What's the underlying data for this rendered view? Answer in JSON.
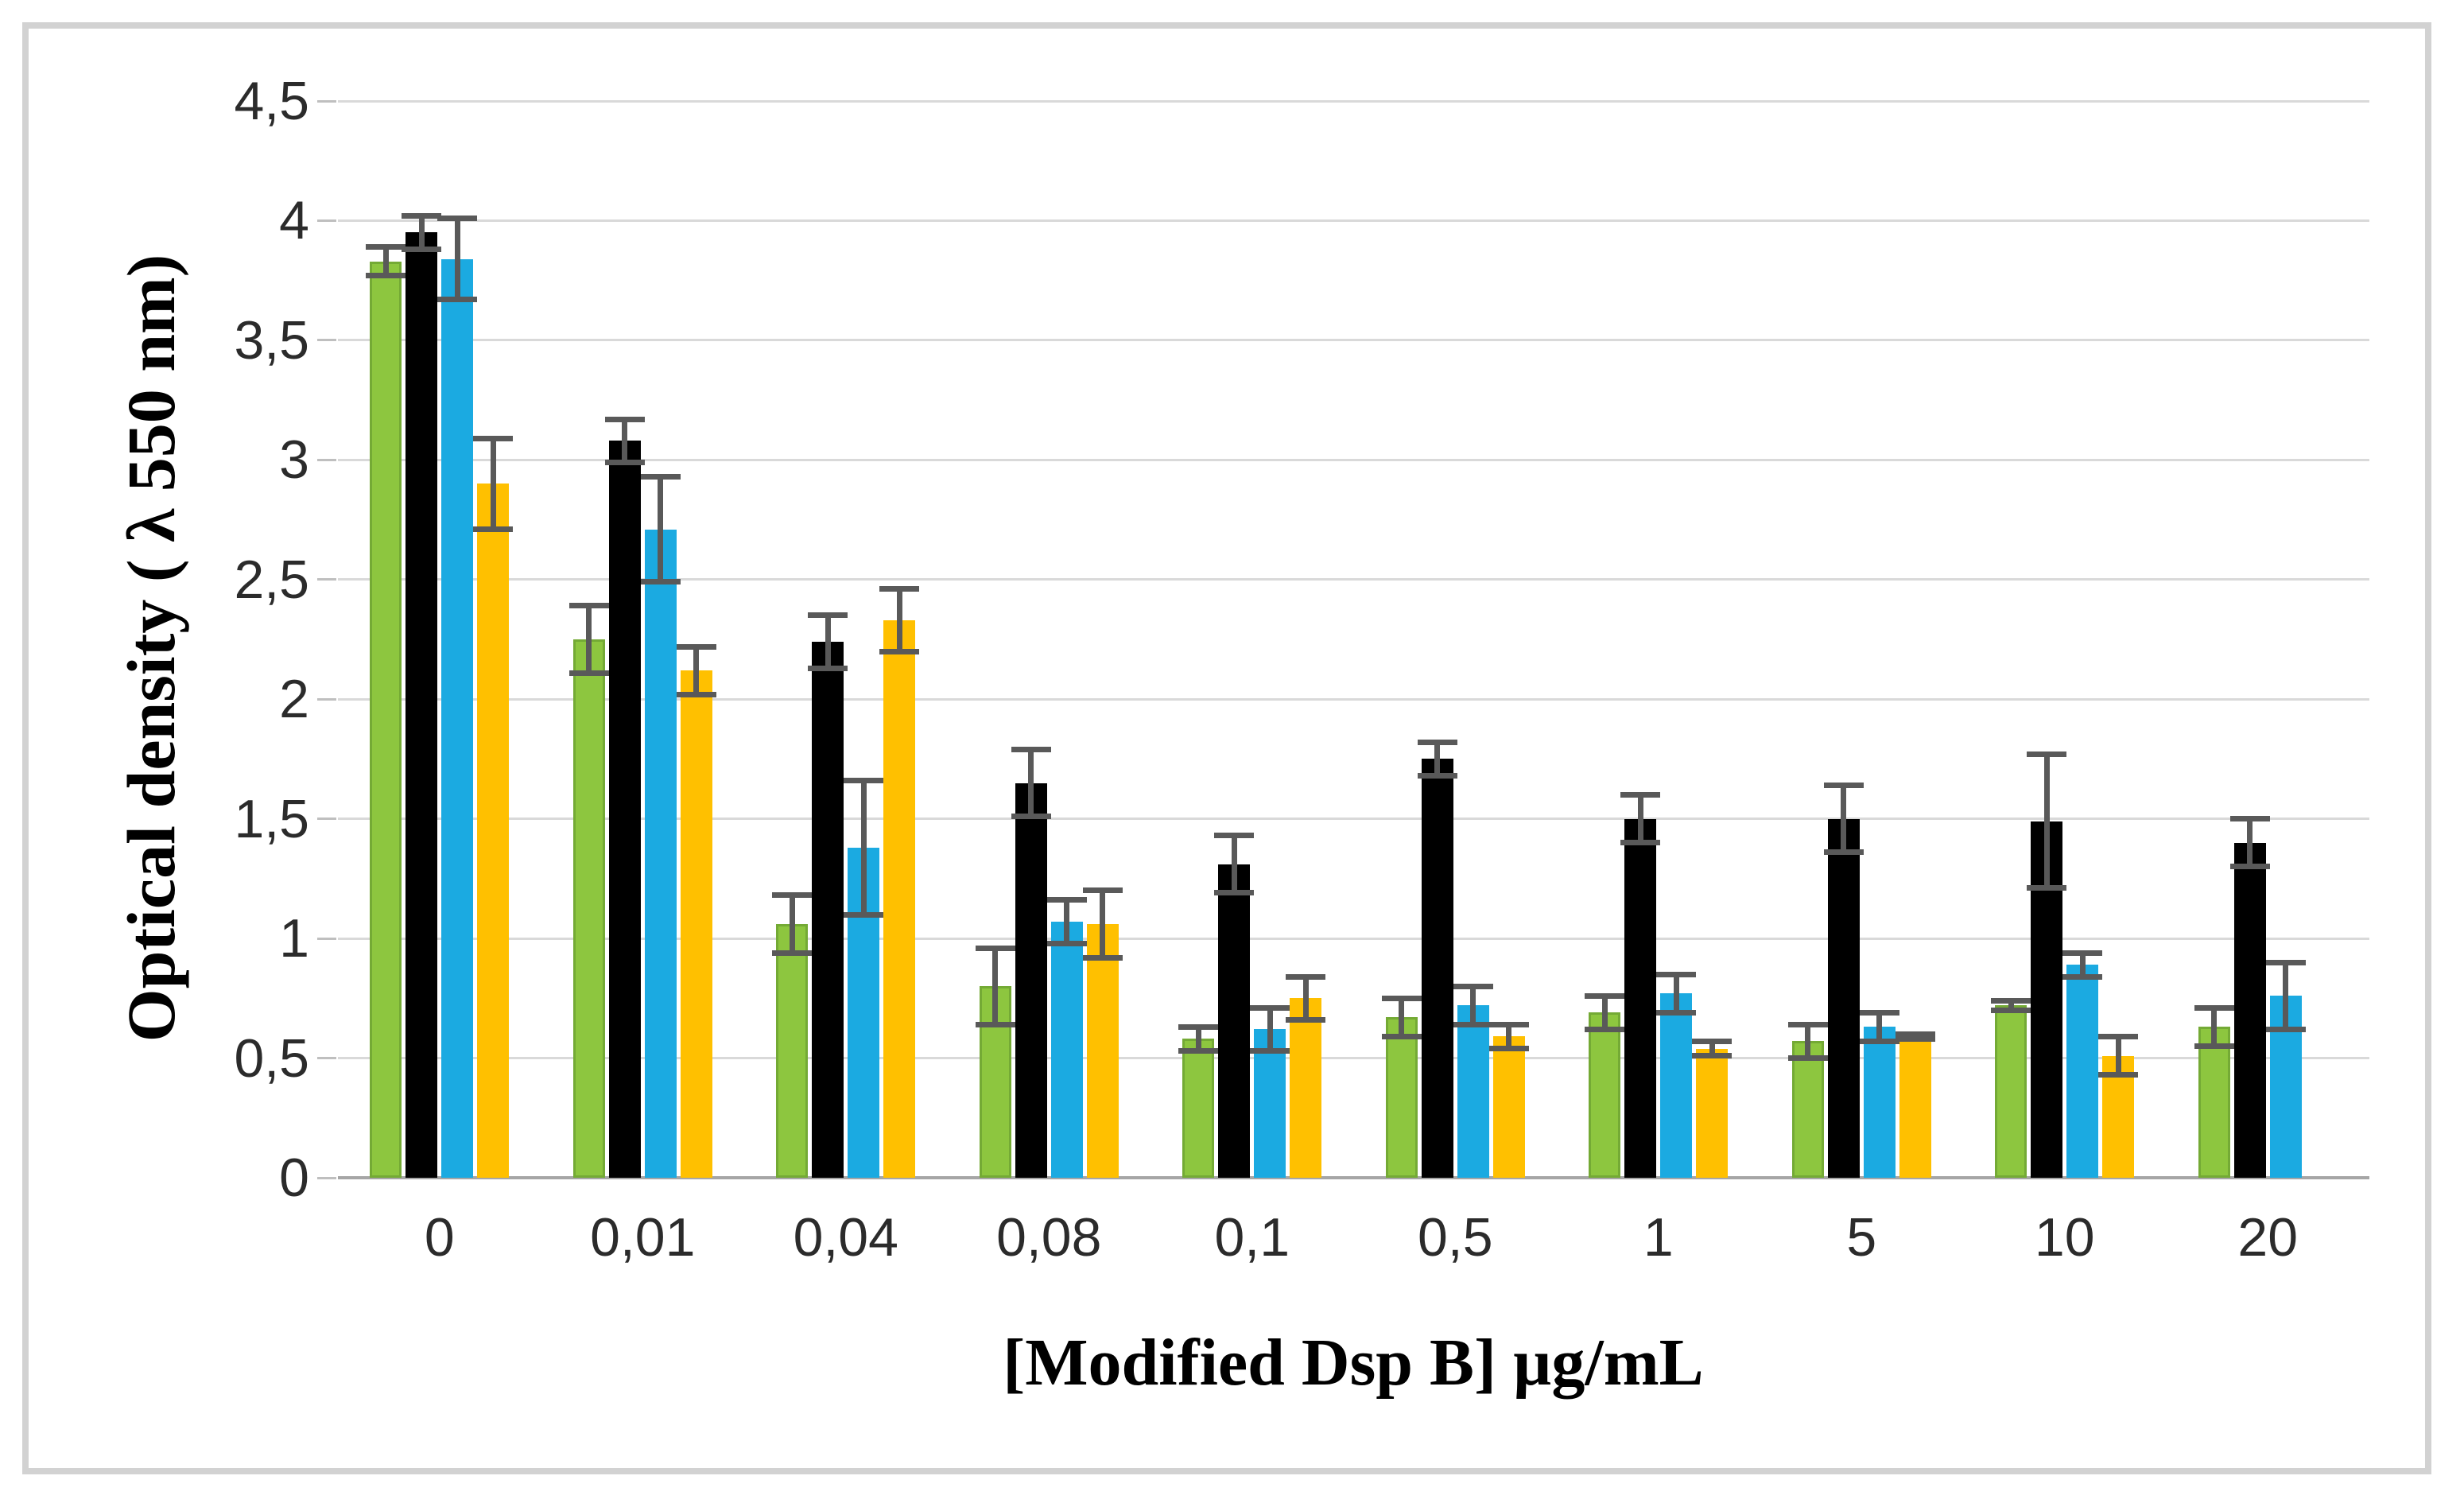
{
  "figure": {
    "y_axis_title": "Optical density ( λ 550 nm)",
    "x_axis_title": "[Modified Dsp B] µg/mL"
  },
  "chart_data": {
    "type": "bar",
    "title": "",
    "xlabel": "[Modified Dsp B] µg/mL",
    "ylabel": "Optical density ( λ 550 nm)",
    "ylim": [
      0,
      4.5
    ],
    "ytick_step": 0.5,
    "ytick_labels": [
      "4,5",
      "4",
      "3,5",
      "3",
      "2,5",
      "2",
      "1,5",
      "1",
      "0,5",
      "0"
    ],
    "grid": "horizontal",
    "legend": "none",
    "categories": [
      "0",
      "0,01",
      "0,04",
      "0,08",
      "0,1",
      "0,5",
      "1",
      "5",
      "10",
      "20"
    ],
    "series": [
      {
        "name": "green",
        "color": "#8dc63f",
        "border_color": "#74aa35",
        "values": [
          3.83,
          2.25,
          1.06,
          0.8,
          0.58,
          0.67,
          0.69,
          0.57,
          0.72,
          0.63
        ],
        "errors": [
          0.06,
          0.14,
          0.12,
          0.16,
          0.05,
          0.08,
          0.07,
          0.07,
          0.02,
          0.08
        ]
      },
      {
        "name": "black",
        "color": "#000000",
        "border_color": "#000000",
        "values": [
          3.95,
          3.08,
          2.24,
          1.65,
          1.31,
          1.75,
          1.5,
          1.5,
          1.49,
          1.4
        ],
        "errors": [
          0.07,
          0.09,
          0.11,
          0.14,
          0.12,
          0.07,
          0.1,
          0.14,
          0.28,
          0.1
        ]
      },
      {
        "name": "blue",
        "color": "#1baae1",
        "border_color": "#1baae1",
        "values": [
          3.84,
          2.71,
          1.38,
          1.07,
          0.62,
          0.72,
          0.77,
          0.63,
          0.89,
          0.76
        ],
        "errors": [
          0.17,
          0.22,
          0.28,
          0.09,
          0.09,
          0.08,
          0.08,
          0.06,
          0.05,
          0.14
        ]
      },
      {
        "name": "yellow",
        "color": "#ffc000",
        "border_color": "#ffc000",
        "values": [
          2.9,
          2.12,
          2.33,
          1.06,
          0.75,
          0.59,
          0.54,
          0.59,
          0.51,
          null
        ],
        "errors": [
          0.19,
          0.1,
          0.13,
          0.14,
          0.09,
          0.05,
          0.03,
          0.01,
          0.08,
          null
        ]
      }
    ],
    "colors": {
      "gridline": "#d9d9d9",
      "axis_line": "#a6a6a6",
      "error_bar": "#595959",
      "tick_text": "#2b2b2b"
    }
  }
}
